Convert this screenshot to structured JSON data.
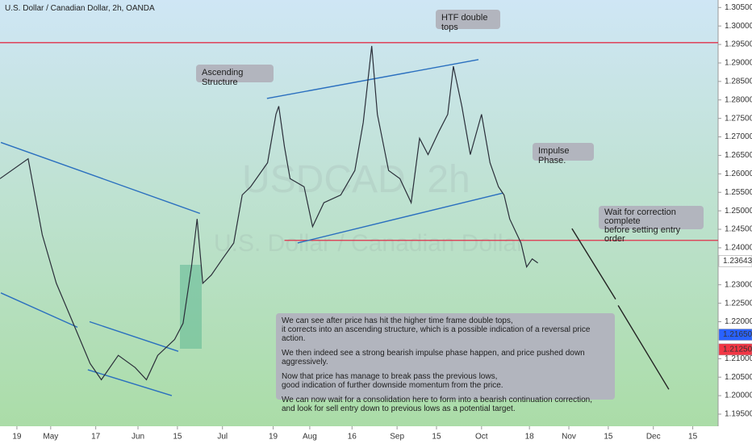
{
  "chart_data": {
    "type": "line",
    "title": "U.S. Dollar / Canadian Dollar, 2h, OANDA",
    "watermark": "USDCAD, 2h",
    "watermark_sub": "U.S. Dollar / Canadian Dollar",
    "color": "#2a2e39",
    "x": [
      12,
      22,
      27,
      32,
      38,
      44,
      48,
      54,
      60,
      64,
      68,
      74,
      77,
      80,
      82,
      84,
      87,
      91,
      95,
      98,
      101,
      107,
      110,
      111,
      113,
      115,
      120,
      123,
      127,
      133,
      138,
      141,
      144,
      146,
      150,
      154,
      158,
      161,
      164,
      168,
      171,
      173,
      176,
      179,
      183,
      186,
      189,
      191,
      193,
      197,
      199,
      201,
      203
    ],
    "values": [
      1.2587,
      1.2641,
      1.2435,
      1.2304,
      1.2196,
      1.2087,
      1.2043,
      1.2109,
      1.2076,
      1.2043,
      1.2109,
      1.2152,
      1.2196,
      1.2348,
      1.2478,
      1.2304,
      1.2326,
      1.237,
      1.2413,
      1.2543,
      1.2565,
      1.263,
      1.2761,
      1.2783,
      1.2674,
      1.2587,
      1.2565,
      1.2457,
      1.2522,
      1.2543,
      1.2609,
      1.2739,
      1.2946,
      1.2761,
      1.2609,
      1.2587,
      1.2522,
      1.2696,
      1.2652,
      1.2717,
      1.2761,
      1.2891,
      1.2783,
      1.2652,
      1.2761,
      1.263,
      1.2565,
      1.2543,
      1.2478,
      1.2413,
      1.2348,
      1.237,
      1.2359
    ],
    "xlim": [
      12,
      267
    ],
    "ylim": [
      1.195,
      1.3055
    ],
    "xticks": [
      {
        "value": 18,
        "label": "19"
      },
      {
        "value": 30,
        "label": "May"
      },
      {
        "value": 46,
        "label": "17"
      },
      {
        "value": 61,
        "label": "Jun"
      },
      {
        "value": 75,
        "label": "15"
      },
      {
        "value": 91,
        "label": "Jul"
      },
      {
        "value": 109,
        "label": "19"
      },
      {
        "value": 122,
        "label": "Aug"
      },
      {
        "value": 137,
        "label": "16"
      },
      {
        "value": 153,
        "label": "Sep"
      },
      {
        "value": 167,
        "label": "15"
      },
      {
        "value": 183,
        "label": "Oct"
      },
      {
        "value": 200,
        "label": "18"
      },
      {
        "value": 214,
        "label": "Nov"
      },
      {
        "value": 228,
        "label": "15"
      },
      {
        "value": 244,
        "label": "Dec"
      },
      {
        "value": 258,
        "label": "15"
      }
    ],
    "yticks": [
      {
        "value": 1.305,
        "label": "1.30500"
      },
      {
        "value": 1.3,
        "label": "1.30000"
      },
      {
        "value": 1.295,
        "label": "1.29500"
      },
      {
        "value": 1.29,
        "label": "1.29000"
      },
      {
        "value": 1.285,
        "label": "1.28500"
      },
      {
        "value": 1.28,
        "label": "1.28000"
      },
      {
        "value": 1.275,
        "label": "1.27500"
      },
      {
        "value": 1.27,
        "label": "1.27000"
      },
      {
        "value": 1.265,
        "label": "1.26500"
      },
      {
        "value": 1.26,
        "label": "1.26000"
      },
      {
        "value": 1.255,
        "label": "1.25500"
      },
      {
        "value": 1.25,
        "label": "1.25000"
      },
      {
        "value": 1.245,
        "label": "1.24500"
      },
      {
        "value": 1.24,
        "label": "1.24000"
      },
      {
        "value": 1.23,
        "label": "1.23000"
      },
      {
        "value": 1.225,
        "label": "1.22500"
      },
      {
        "value": 1.22,
        "label": "1.22000"
      },
      {
        "value": 1.21,
        "label": "1.21000"
      },
      {
        "value": 1.205,
        "label": "1.20500"
      },
      {
        "value": 1.2,
        "label": "1.20000"
      },
      {
        "value": 1.195,
        "label": "1.19500"
      }
    ],
    "price_labels": [
      {
        "value": 1.23643,
        "label": "1.23643",
        "color": "#ffffff"
      },
      {
        "value": 1.2165,
        "label": "1.21650",
        "color": "#2962ff"
      },
      {
        "value": 1.2125,
        "label": "1.21250",
        "color": "#f23645"
      }
    ],
    "levels": [
      {
        "value": 1.2955,
        "from": 12,
        "color": "#e0304a"
      },
      {
        "value": 1.242,
        "from": 113,
        "color": "#e0304a"
      }
    ],
    "trendlines": [
      {
        "points": [
          [
            12.3,
            1.2685
          ],
          [
            83.0,
            1.2493
          ]
        ],
        "color": "#2a6fbf"
      },
      {
        "points": [
          [
            12.3,
            1.2278
          ],
          [
            39.5,
            1.2185
          ]
        ],
        "color": "#2a6fbf"
      },
      {
        "points": [
          [
            43.8,
            1.22
          ],
          [
            75.3,
            1.212
          ]
        ],
        "color": "#2a6fbf"
      },
      {
        "points": [
          [
            43.2,
            1.207
          ],
          [
            73.0,
            1.2
          ]
        ],
        "color": "#2a6fbf"
      },
      {
        "points": [
          [
            106.8,
            1.2804
          ],
          [
            181.9,
            1.2909
          ]
        ],
        "color": "#2a6fbf"
      },
      {
        "points": [
          [
            117.7,
            1.2413
          ],
          [
            190.5,
            1.2548
          ]
        ],
        "color": "#2a6fbf"
      },
      {
        "points": [
          [
            215.1,
            1.2452
          ],
          [
            230.6,
            1.2261
          ]
        ],
        "color": "#222222"
      },
      {
        "points": [
          [
            231.5,
            1.2244
          ],
          [
            249.5,
            1.2017
          ]
        ],
        "color": "#222222"
      }
    ],
    "annotations": [
      "HTF double tops",
      "Ascending Structure",
      "Impulse Phase.",
      "Wait for correction complete\nbefore setting entry order"
    ],
    "commentary": [
      "We can see after price has hit the higher time frame double tops,\nit corrects into an ascending structure, which is a possible indication of a reversal price action.",
      "We then indeed see a strong bearish impulse phase happen, and price pushed down aggressively.",
      "Now that price has manage to break pass the previous lows,\ngood indication of further downside momentum from the price.",
      "We can now wait for a consolidation here to form into a bearish continuation correction,\nand look for sell entry down to previous lows as a potential target."
    ]
  }
}
